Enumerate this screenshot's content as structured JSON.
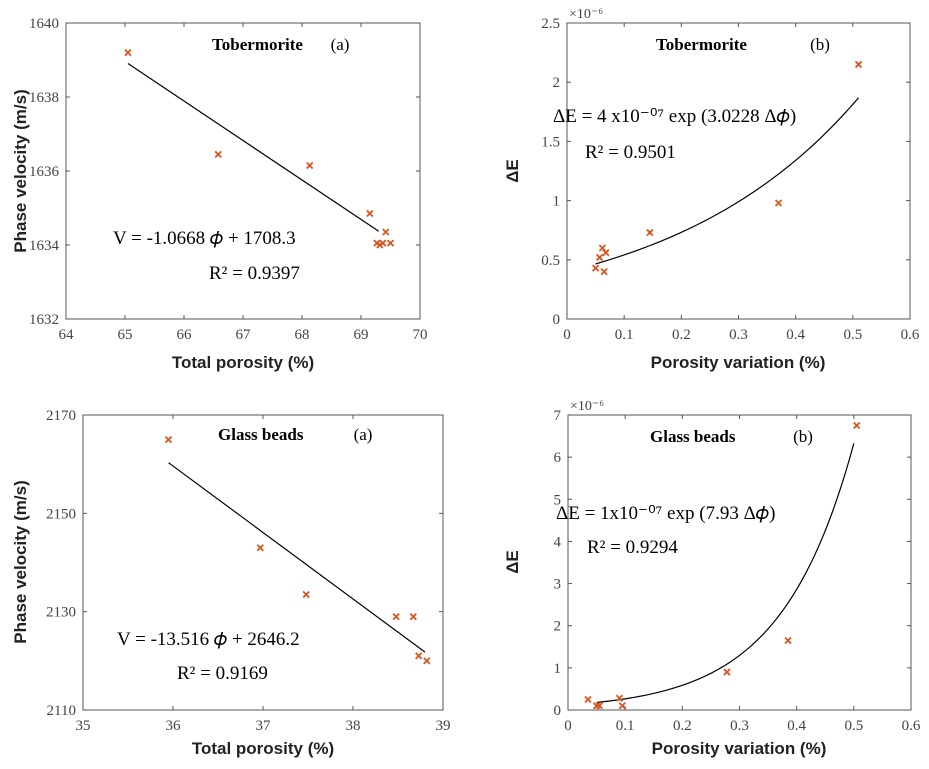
{
  "chart_data": [
    {
      "type": "scatter",
      "title": "Tobermorite",
      "panel_label": "(a)",
      "xlabel": "Total porosity (%)",
      "ylabel": "Phase velocity (m/s)",
      "xlim": [
        64,
        70
      ],
      "ylim": [
        1632,
        1640
      ],
      "xticks": [
        "64",
        "65",
        "66",
        "67",
        "68",
        "69",
        "70"
      ],
      "yticks": [
        "1632",
        "1634",
        "1636",
        "1638",
        "1640"
      ],
      "grid": false,
      "marker_color": "#d9541e",
      "fit_color": "#000000",
      "points": [
        {
          "x": 65.05,
          "y": 1639.2
        },
        {
          "x": 66.58,
          "y": 1636.45
        },
        {
          "x": 68.13,
          "y": 1636.15
        },
        {
          "x": 69.15,
          "y": 1634.85
        },
        {
          "x": 69.27,
          "y": 1634.05
        },
        {
          "x": 69.32,
          "y": 1634.0
        },
        {
          "x": 69.37,
          "y": 1634.05
        },
        {
          "x": 69.42,
          "y": 1634.35
        },
        {
          "x": 69.5,
          "y": 1634.05
        }
      ],
      "fit": {
        "kind": "linear",
        "slope": -1.0668,
        "intercept": 1708.3,
        "x_range": [
          65.05,
          69.3
        ]
      },
      "annotation_eq": "V = -1.0668 𝜙 + 1708.3",
      "annotation_r2": "R² = 0.9397"
    },
    {
      "type": "scatter",
      "title": "Tobermorite",
      "panel_label": "(b)",
      "xlabel": "Porosity variation (%)",
      "ylabel": "ΔE",
      "axis_multiplier": "×10⁻⁶",
      "xlim": [
        0,
        0.6
      ],
      "ylim": [
        0,
        2.5
      ],
      "xticks": [
        "0",
        "0.1",
        "0.2",
        "0.3",
        "0.4",
        "0.5",
        "0.6"
      ],
      "yticks": [
        "0",
        "0.5",
        "1",
        "1.5",
        "2",
        "2.5"
      ],
      "grid": false,
      "marker_color": "#d9541e",
      "fit_color": "#000000",
      "points": [
        {
          "x": 0.05,
          "y": 0.43
        },
        {
          "x": 0.057,
          "y": 0.52
        },
        {
          "x": 0.062,
          "y": 0.6
        },
        {
          "x": 0.065,
          "y": 0.4
        },
        {
          "x": 0.068,
          "y": 0.56
        },
        {
          "x": 0.145,
          "y": 0.73
        },
        {
          "x": 0.37,
          "y": 0.98
        },
        {
          "x": 0.51,
          "y": 2.15
        }
      ],
      "fit": {
        "kind": "exp",
        "a": 0.4,
        "b": 3.0228,
        "x_range": [
          0.05,
          0.51
        ]
      },
      "annotation_eq": "ΔE = 4 x10⁻⁰⁷ exp (3.0228 Δ𝜙)",
      "annotation_r2": "R² = 0.9501"
    },
    {
      "type": "scatter",
      "title": "Glass beads",
      "panel_label": "(a)",
      "xlabel": "Total porosity (%)",
      "ylabel": "Phase velocity (m/s)",
      "xlim": [
        35,
        39
      ],
      "ylim": [
        2110,
        2170
      ],
      "xticks": [
        "35",
        "36",
        "37",
        "38",
        "39"
      ],
      "yticks": [
        "2110",
        "2130",
        "2150",
        "2170"
      ],
      "grid": false,
      "marker_color": "#d9541e",
      "fit_color": "#000000",
      "points": [
        {
          "x": 35.95,
          "y": 2165
        },
        {
          "x": 36.97,
          "y": 2143
        },
        {
          "x": 37.48,
          "y": 2133.5
        },
        {
          "x": 38.48,
          "y": 2129
        },
        {
          "x": 38.67,
          "y": 2129
        },
        {
          "x": 38.73,
          "y": 2121
        },
        {
          "x": 38.82,
          "y": 2120
        }
      ],
      "fit": {
        "kind": "linear",
        "slope": -13.516,
        "intercept": 2646.2,
        "x_range": [
          35.95,
          38.8
        ]
      },
      "annotation_eq": "V = -13.516 𝜙 + 2646.2",
      "annotation_r2": "R² = 0.9169"
    },
    {
      "type": "scatter",
      "title": "Glass beads",
      "panel_label": "(b)",
      "xlabel": "Porosity variation (%)",
      "ylabel": "ΔE",
      "axis_multiplier": "×10⁻⁶",
      "xlim": [
        0,
        0.6
      ],
      "ylim": [
        0,
        7
      ],
      "xticks": [
        "0",
        "0.1",
        "0.2",
        "0.3",
        "0.4",
        "0.5",
        "0.6"
      ],
      "yticks": [
        "0",
        "1",
        "2",
        "3",
        "4",
        "5",
        "6",
        "7"
      ],
      "grid": false,
      "marker_color": "#d9541e",
      "fit_color": "#000000",
      "points": [
        {
          "x": 0.035,
          "y": 0.25
        },
        {
          "x": 0.05,
          "y": 0.1
        },
        {
          "x": 0.055,
          "y": 0.1
        },
        {
          "x": 0.09,
          "y": 0.28
        },
        {
          "x": 0.095,
          "y": 0.1
        },
        {
          "x": 0.278,
          "y": 0.9
        },
        {
          "x": 0.385,
          "y": 1.65
        },
        {
          "x": 0.505,
          "y": 6.75
        }
      ],
      "fit": {
        "kind": "exp",
        "a": 0.1,
        "b": 7.93,
        "x_range": [
          0.05,
          0.5
        ],
        "draw_scale": 1.2
      },
      "annotation_eq": "ΔE = 1x10⁻⁰⁷ exp (7.93 Δ𝜙)",
      "annotation_r2": "R² = 0.9294"
    }
  ]
}
